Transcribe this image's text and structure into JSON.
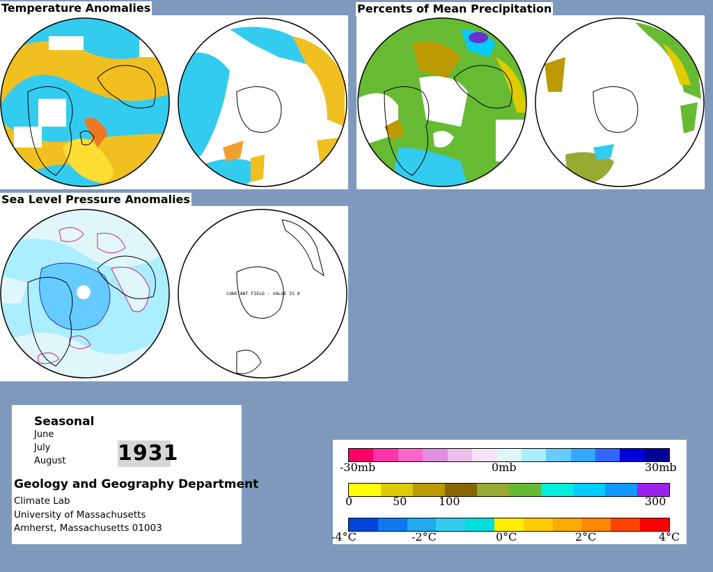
{
  "titles": {
    "temperature": "Temperature Anomalies",
    "precipitation": "Percents of Mean Precipitation",
    "pressure": "Sea Level Pressure Anomalies"
  },
  "maps": {
    "constant_field": "CONSTANT FIELD - VALUE IS 0"
  },
  "info": {
    "period": "Seasonal",
    "months": [
      "June",
      "July",
      "August"
    ],
    "year": "1931",
    "department": "Geology and Geography Department",
    "address": [
      "Climate Lab",
      "University of Massachusetts",
      "Amherst, Massachusetts 01003"
    ]
  },
  "legend": {
    "pressure": {
      "labels": [
        "-30mb",
        "0mb",
        "30mb"
      ],
      "colors": [
        "#ff0066",
        "#ff33aa",
        "#ff66cc",
        "#e090e0",
        "#ecc0ec",
        "#f4e4f4",
        "#dff6fb",
        "#aaeeff",
        "#66ccff",
        "#33aaff",
        "#3366ff",
        "#0000dd",
        "#000099"
      ]
    },
    "precipitation": {
      "labels": [
        "0",
        "50",
        "100",
        "300"
      ],
      "colors": [
        "#ffff00",
        "#ddcc00",
        "#bb9900",
        "#886600",
        "#99aa33",
        "#66bb33",
        "#00eedd",
        "#00ccff",
        "#1199ff",
        "#9922ee"
      ]
    },
    "temperature": {
      "labels": [
        "-4°C",
        "-2°C",
        "0°C",
        "2°C",
        "4°C"
      ],
      "colors": [
        "#0044dd",
        "#1177ee",
        "#22aaee",
        "#33ccee",
        "#00dddd",
        "#ffee00",
        "#ffcc00",
        "#ffaa00",
        "#ff8800",
        "#ff4400",
        "#ff0000"
      ]
    }
  }
}
